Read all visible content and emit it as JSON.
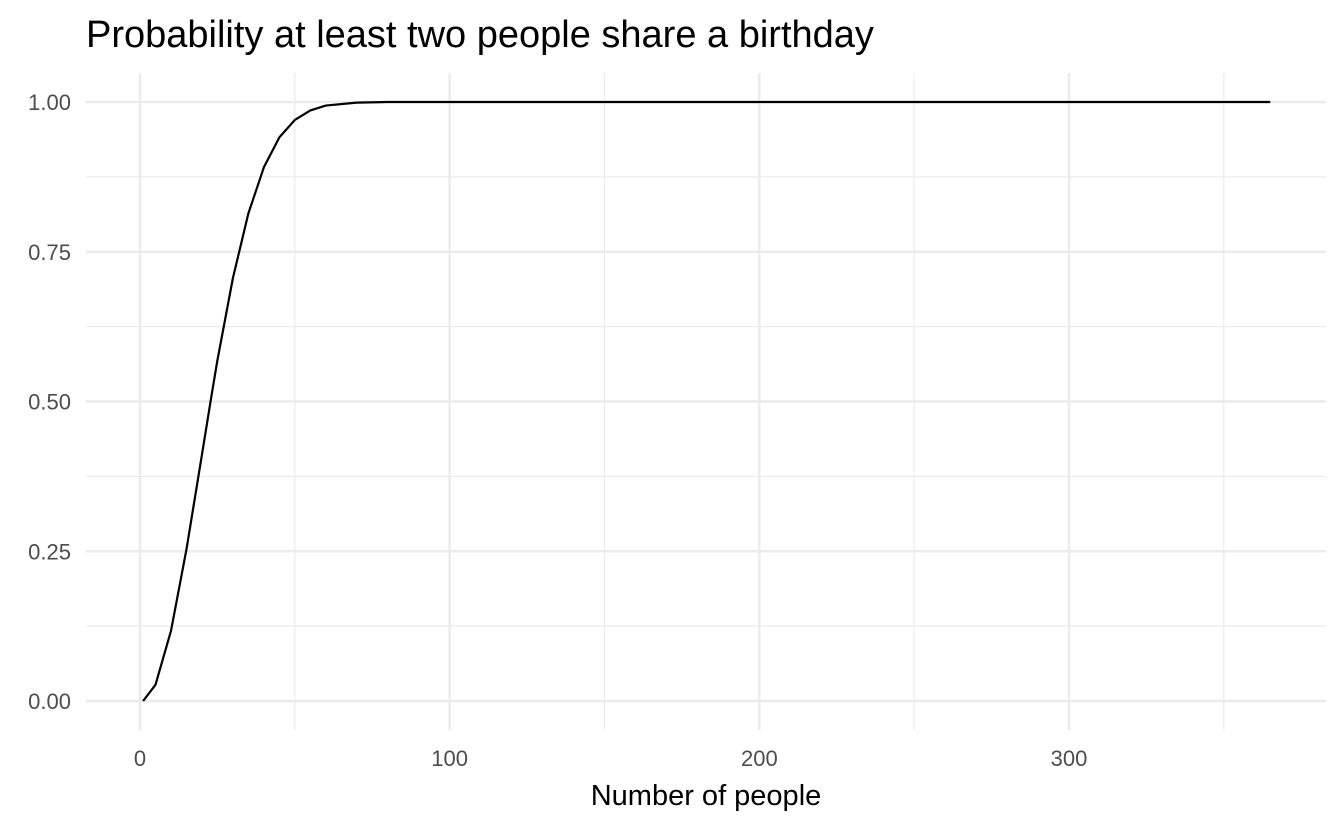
{
  "chart_data": {
    "type": "line",
    "title": "Probability at least two people share a birthday",
    "xlabel": "Number of people",
    "ylabel": "",
    "xlim": [
      1,
      365
    ],
    "ylim": [
      0,
      1
    ],
    "x_ticks": [
      0,
      100,
      200,
      300
    ],
    "x_tick_labels": [
      "0",
      "100",
      "200",
      "300"
    ],
    "y_ticks": [
      0,
      0.25,
      0.5,
      0.75,
      1.0
    ],
    "y_tick_labels": [
      "0.00",
      "0.25",
      "0.50",
      "0.75",
      "1.00"
    ],
    "grid": true,
    "legend": "none",
    "line_color": "#000000",
    "series": [
      {
        "x": [
          1,
          5,
          10,
          15,
          20,
          23,
          25,
          30,
          35,
          40,
          45,
          50,
          55,
          60,
          70,
          80,
          100,
          150,
          200,
          250,
          300,
          365
        ],
        "values": [
          0.0,
          0.027,
          0.117,
          0.253,
          0.411,
          0.507,
          0.569,
          0.706,
          0.814,
          0.891,
          0.941,
          0.97,
          0.986,
          0.994,
          0.999,
          1.0,
          1.0,
          1.0,
          1.0,
          1.0,
          1.0,
          1.0
        ]
      }
    ]
  }
}
